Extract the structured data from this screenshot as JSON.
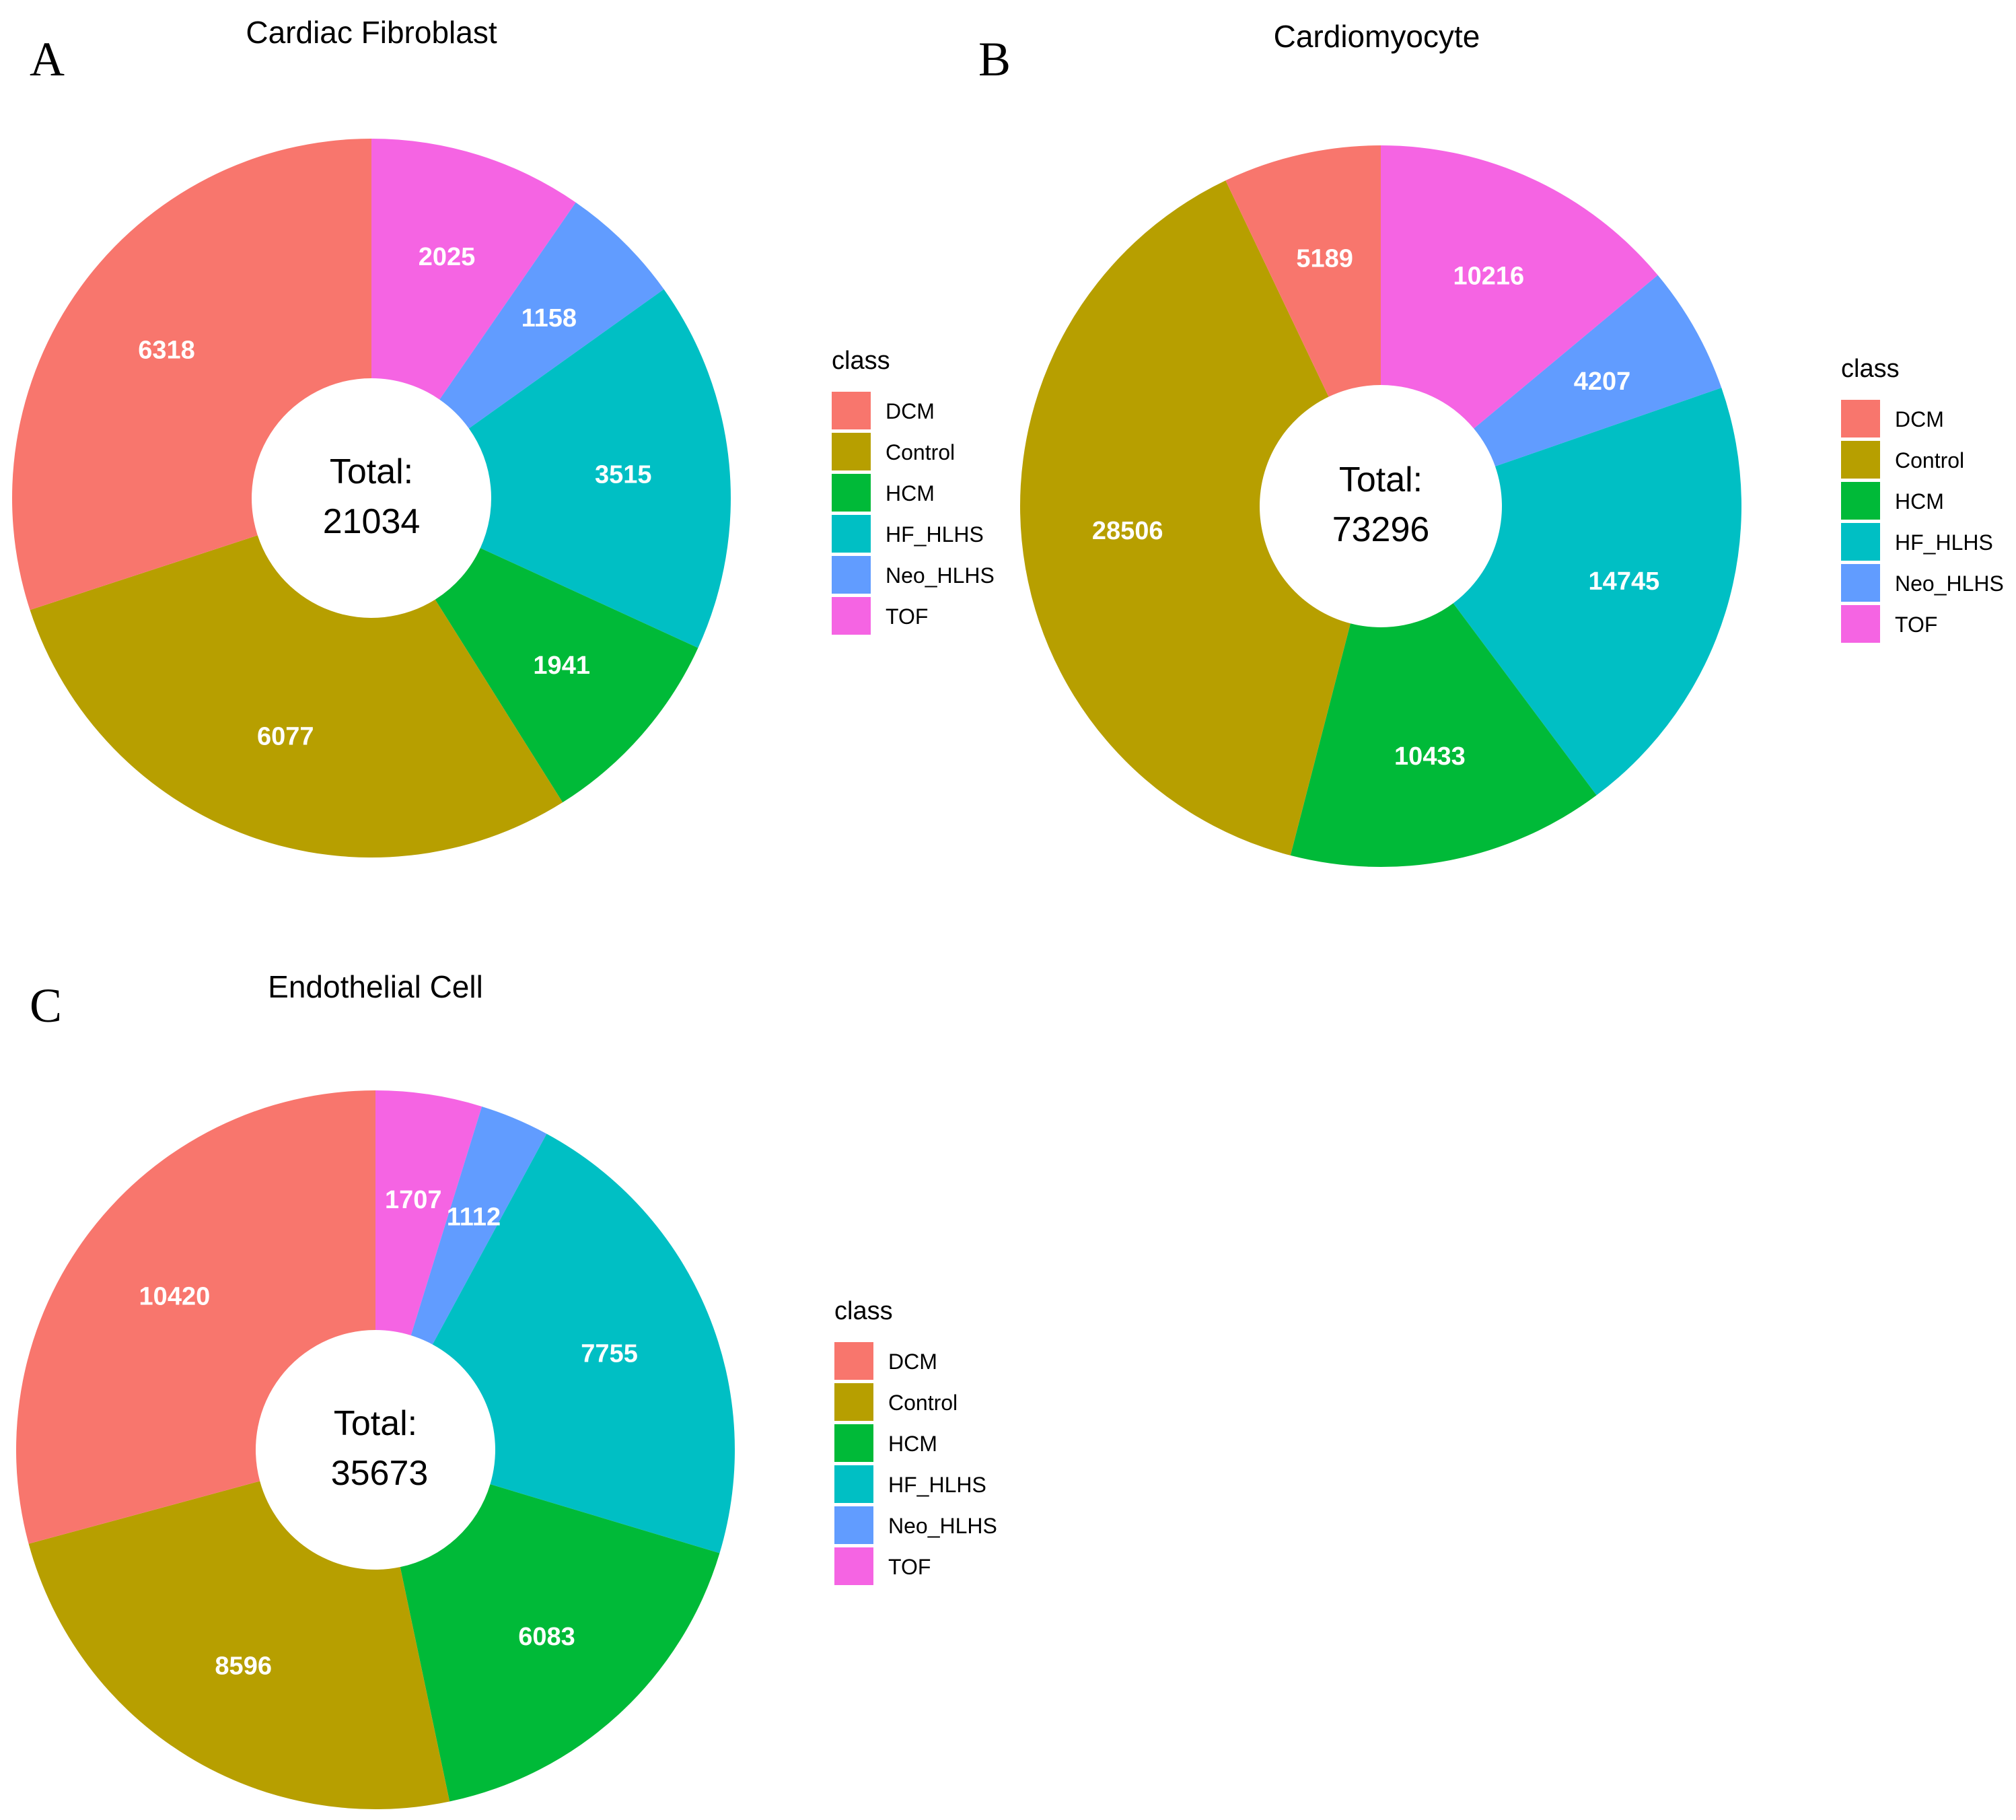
{
  "class_colors": {
    "DCM": "#F8766D",
    "Control": "#B79F00",
    "HCM": "#00BA38",
    "HF_HLHS": "#00BFC4",
    "Neo_HLHS": "#619CFF",
    "TOF": "#F564E3"
  },
  "chart_data": [
    {
      "type": "pie",
      "panel": "A",
      "title": "Cardiac Fibroblast",
      "center_label": "Total:",
      "center_value": "21034",
      "legend_title": "class",
      "slices": [
        {
          "label": "TOF",
          "value": 2025
        },
        {
          "label": "Neo_HLHS",
          "value": 1158
        },
        {
          "label": "HF_HLHS",
          "value": 3515
        },
        {
          "label": "HCM",
          "value": 1941
        },
        {
          "label": "Control",
          "value": 6077
        },
        {
          "label": "DCM",
          "value": 6318
        }
      ],
      "legend": [
        "DCM",
        "Control",
        "HCM",
        "HF_HLHS",
        "Neo_HLHS",
        "TOF"
      ]
    },
    {
      "type": "pie",
      "panel": "B",
      "title": "Cardiomyocyte",
      "center_label": "Total:",
      "center_value": "73296",
      "legend_title": "class",
      "slices": [
        {
          "label": "TOF",
          "value": 10216
        },
        {
          "label": "Neo_HLHS",
          "value": 4207
        },
        {
          "label": "HF_HLHS",
          "value": 14745
        },
        {
          "label": "HCM",
          "value": 10433
        },
        {
          "label": "Control",
          "value": 28506
        },
        {
          "label": "DCM",
          "value": 5189
        }
      ],
      "legend": [
        "DCM",
        "Control",
        "HCM",
        "HF_HLHS",
        "Neo_HLHS",
        "TOF"
      ]
    },
    {
      "type": "pie",
      "panel": "C",
      "title": "Endothelial Cell",
      "center_label": "Total:",
      "center_value": "35673",
      "legend_title": "class",
      "slices": [
        {
          "label": "TOF",
          "value": 1707
        },
        {
          "label": "Neo_HLHS",
          "value": 1112
        },
        {
          "label": "HF_HLHS",
          "value": 7755
        },
        {
          "label": "HCM",
          "value": 6083
        },
        {
          "label": "Control",
          "value": 8596
        },
        {
          "label": "DCM",
          "value": 10420
        }
      ],
      "legend": [
        "DCM",
        "Control",
        "HCM",
        "HF_HLHS",
        "Neo_HLHS",
        "TOF"
      ]
    }
  ]
}
